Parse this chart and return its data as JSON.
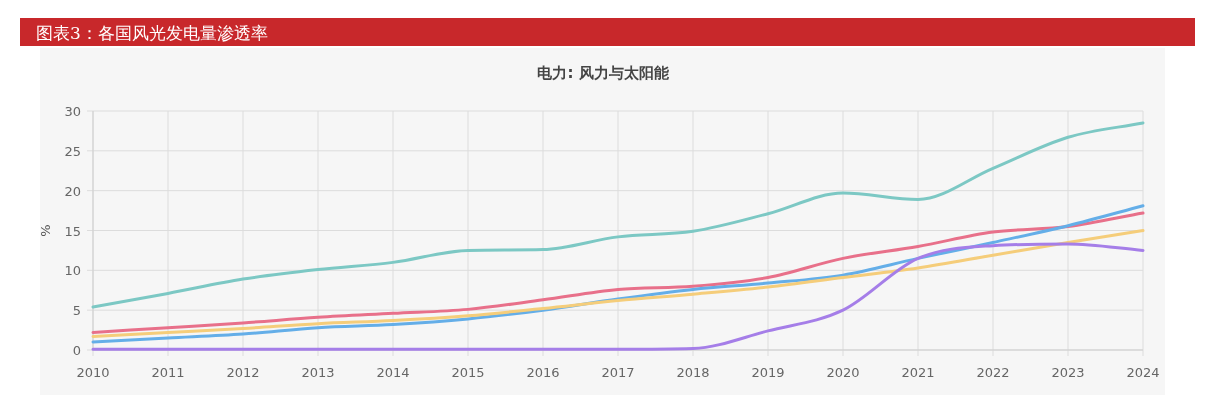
{
  "chart_data": {
    "type": "line",
    "title": "图表3：各国风光发电量渗透率",
    "subtitle": "电力: 风力与太阳能",
    "ylabel": "%",
    "x": [
      2010,
      2011,
      2012,
      2013,
      2014,
      2015,
      2016,
      2017,
      2018,
      2019,
      2020,
      2021,
      2022,
      2023,
      2024
    ],
    "xlim": [
      2010,
      2024
    ],
    "xticks": [
      2010,
      2011,
      2012,
      2013,
      2014,
      2015,
      2016,
      2017,
      2018,
      2019,
      2020,
      2021,
      2022,
      2023,
      2024
    ],
    "ylim": [
      0,
      30
    ],
    "yticks": [
      0,
      5,
      10,
      15,
      20,
      25,
      30
    ],
    "grid": true,
    "marker": "none",
    "line_style": "solid",
    "series": [
      {
        "color": "#7cc8c4",
        "values": [
          5.4,
          7.1,
          8.9,
          10.1,
          11.0,
          12.5,
          12.6,
          14.2,
          14.9,
          17.1,
          19.7,
          18.9,
          22.8,
          26.7,
          28.5
        ]
      },
      {
        "color": "#e8708a",
        "values": [
          2.2,
          2.8,
          3.4,
          4.1,
          4.6,
          5.1,
          6.3,
          7.6,
          8.0,
          9.1,
          11.5,
          13.0,
          14.8,
          15.5,
          17.2
        ]
      },
      {
        "color": "#64aee8",
        "values": [
          1.0,
          1.5,
          2.0,
          2.8,
          3.2,
          3.9,
          5.0,
          6.4,
          7.6,
          8.4,
          9.4,
          11.5,
          13.5,
          15.6,
          18.1
        ]
      },
      {
        "color": "#f5cd7a",
        "values": [
          1.7,
          2.2,
          2.7,
          3.3,
          3.7,
          4.3,
          5.2,
          6.2,
          7.0,
          7.9,
          9.1,
          10.3,
          11.9,
          13.5,
          15.0
        ]
      },
      {
        "color": "#a57ee8",
        "values": [
          0.1,
          0.1,
          0.1,
          0.1,
          0.1,
          0.1,
          0.1,
          0.1,
          0.2,
          2.4,
          5.0,
          11.5,
          13.1,
          13.3,
          12.5
        ]
      }
    ]
  }
}
